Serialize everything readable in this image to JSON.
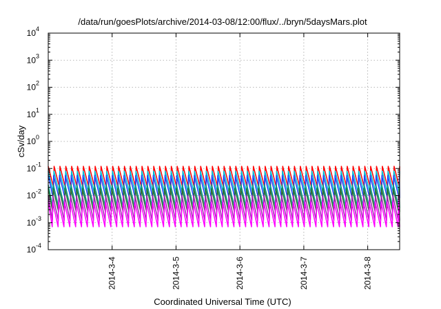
{
  "chart_data": {
    "type": "line",
    "title": "/data/run/goesPlots/archive/2014-03-08/12:00/flux/../bryn/5daysMars.plot",
    "xlabel": "Coordinated Universal Time (UTC)",
    "ylabel": "cSv/day",
    "yscale": "log",
    "ylim": [
      0.0001,
      10000
    ],
    "xlim": [
      "2014-03-03T00:00",
      "2014-03-08T12:00"
    ],
    "grid": true,
    "legend": "none",
    "x_ticks": [
      {
        "value": "2014-03-04T00:00",
        "label": "2014-3-4"
      },
      {
        "value": "2014-03-05T00:00",
        "label": "2014-3-5"
      },
      {
        "value": "2014-03-06T00:00",
        "label": "2014-3-6"
      },
      {
        "value": "2014-03-07T00:00",
        "label": "2014-3-7"
      },
      {
        "value": "2014-03-08T00:00",
        "label": "2014-3-8"
      }
    ],
    "y_ticks": [
      {
        "value": 0.0001,
        "base": "10",
        "exp": "-4"
      },
      {
        "value": 0.001,
        "base": "10",
        "exp": "-3"
      },
      {
        "value": 0.01,
        "base": "10",
        "exp": "-2"
      },
      {
        "value": 0.1,
        "base": "10",
        "exp": "-1"
      },
      {
        "value": 1,
        "base": "10",
        "exp": "0"
      },
      {
        "value": 10,
        "base": "10",
        "exp": "1"
      },
      {
        "value": 100,
        "base": "10",
        "exp": "2"
      },
      {
        "value": 1000,
        "base": "10",
        "exp": "3"
      },
      {
        "value": 10000,
        "base": "10",
        "exp": "4"
      }
    ],
    "sawtooth": {
      "cycles_per_day": 10.9,
      "x_start": "2014-03-03T00:00",
      "x_end": "2014-03-08T12:00"
    },
    "series": [
      {
        "color": "#ff0000",
        "peak": 0.12,
        "trough": 0.02
      },
      {
        "color": "#00bcd4",
        "peak": 0.08,
        "trough": 0.012
      },
      {
        "color": "#1e3cff",
        "peak": 0.055,
        "trough": 0.008
      },
      {
        "color": "#009688",
        "peak": 0.025,
        "trough": 0.0035
      },
      {
        "color": "#2f6f2f",
        "peak": 0.018,
        "trough": 0.0025
      },
      {
        "color": "#9c27b0",
        "peak": 0.01,
        "trough": 0.0012
      },
      {
        "color": "#ff00ff",
        "peak": 0.006,
        "trough": 0.0007
      }
    ]
  }
}
